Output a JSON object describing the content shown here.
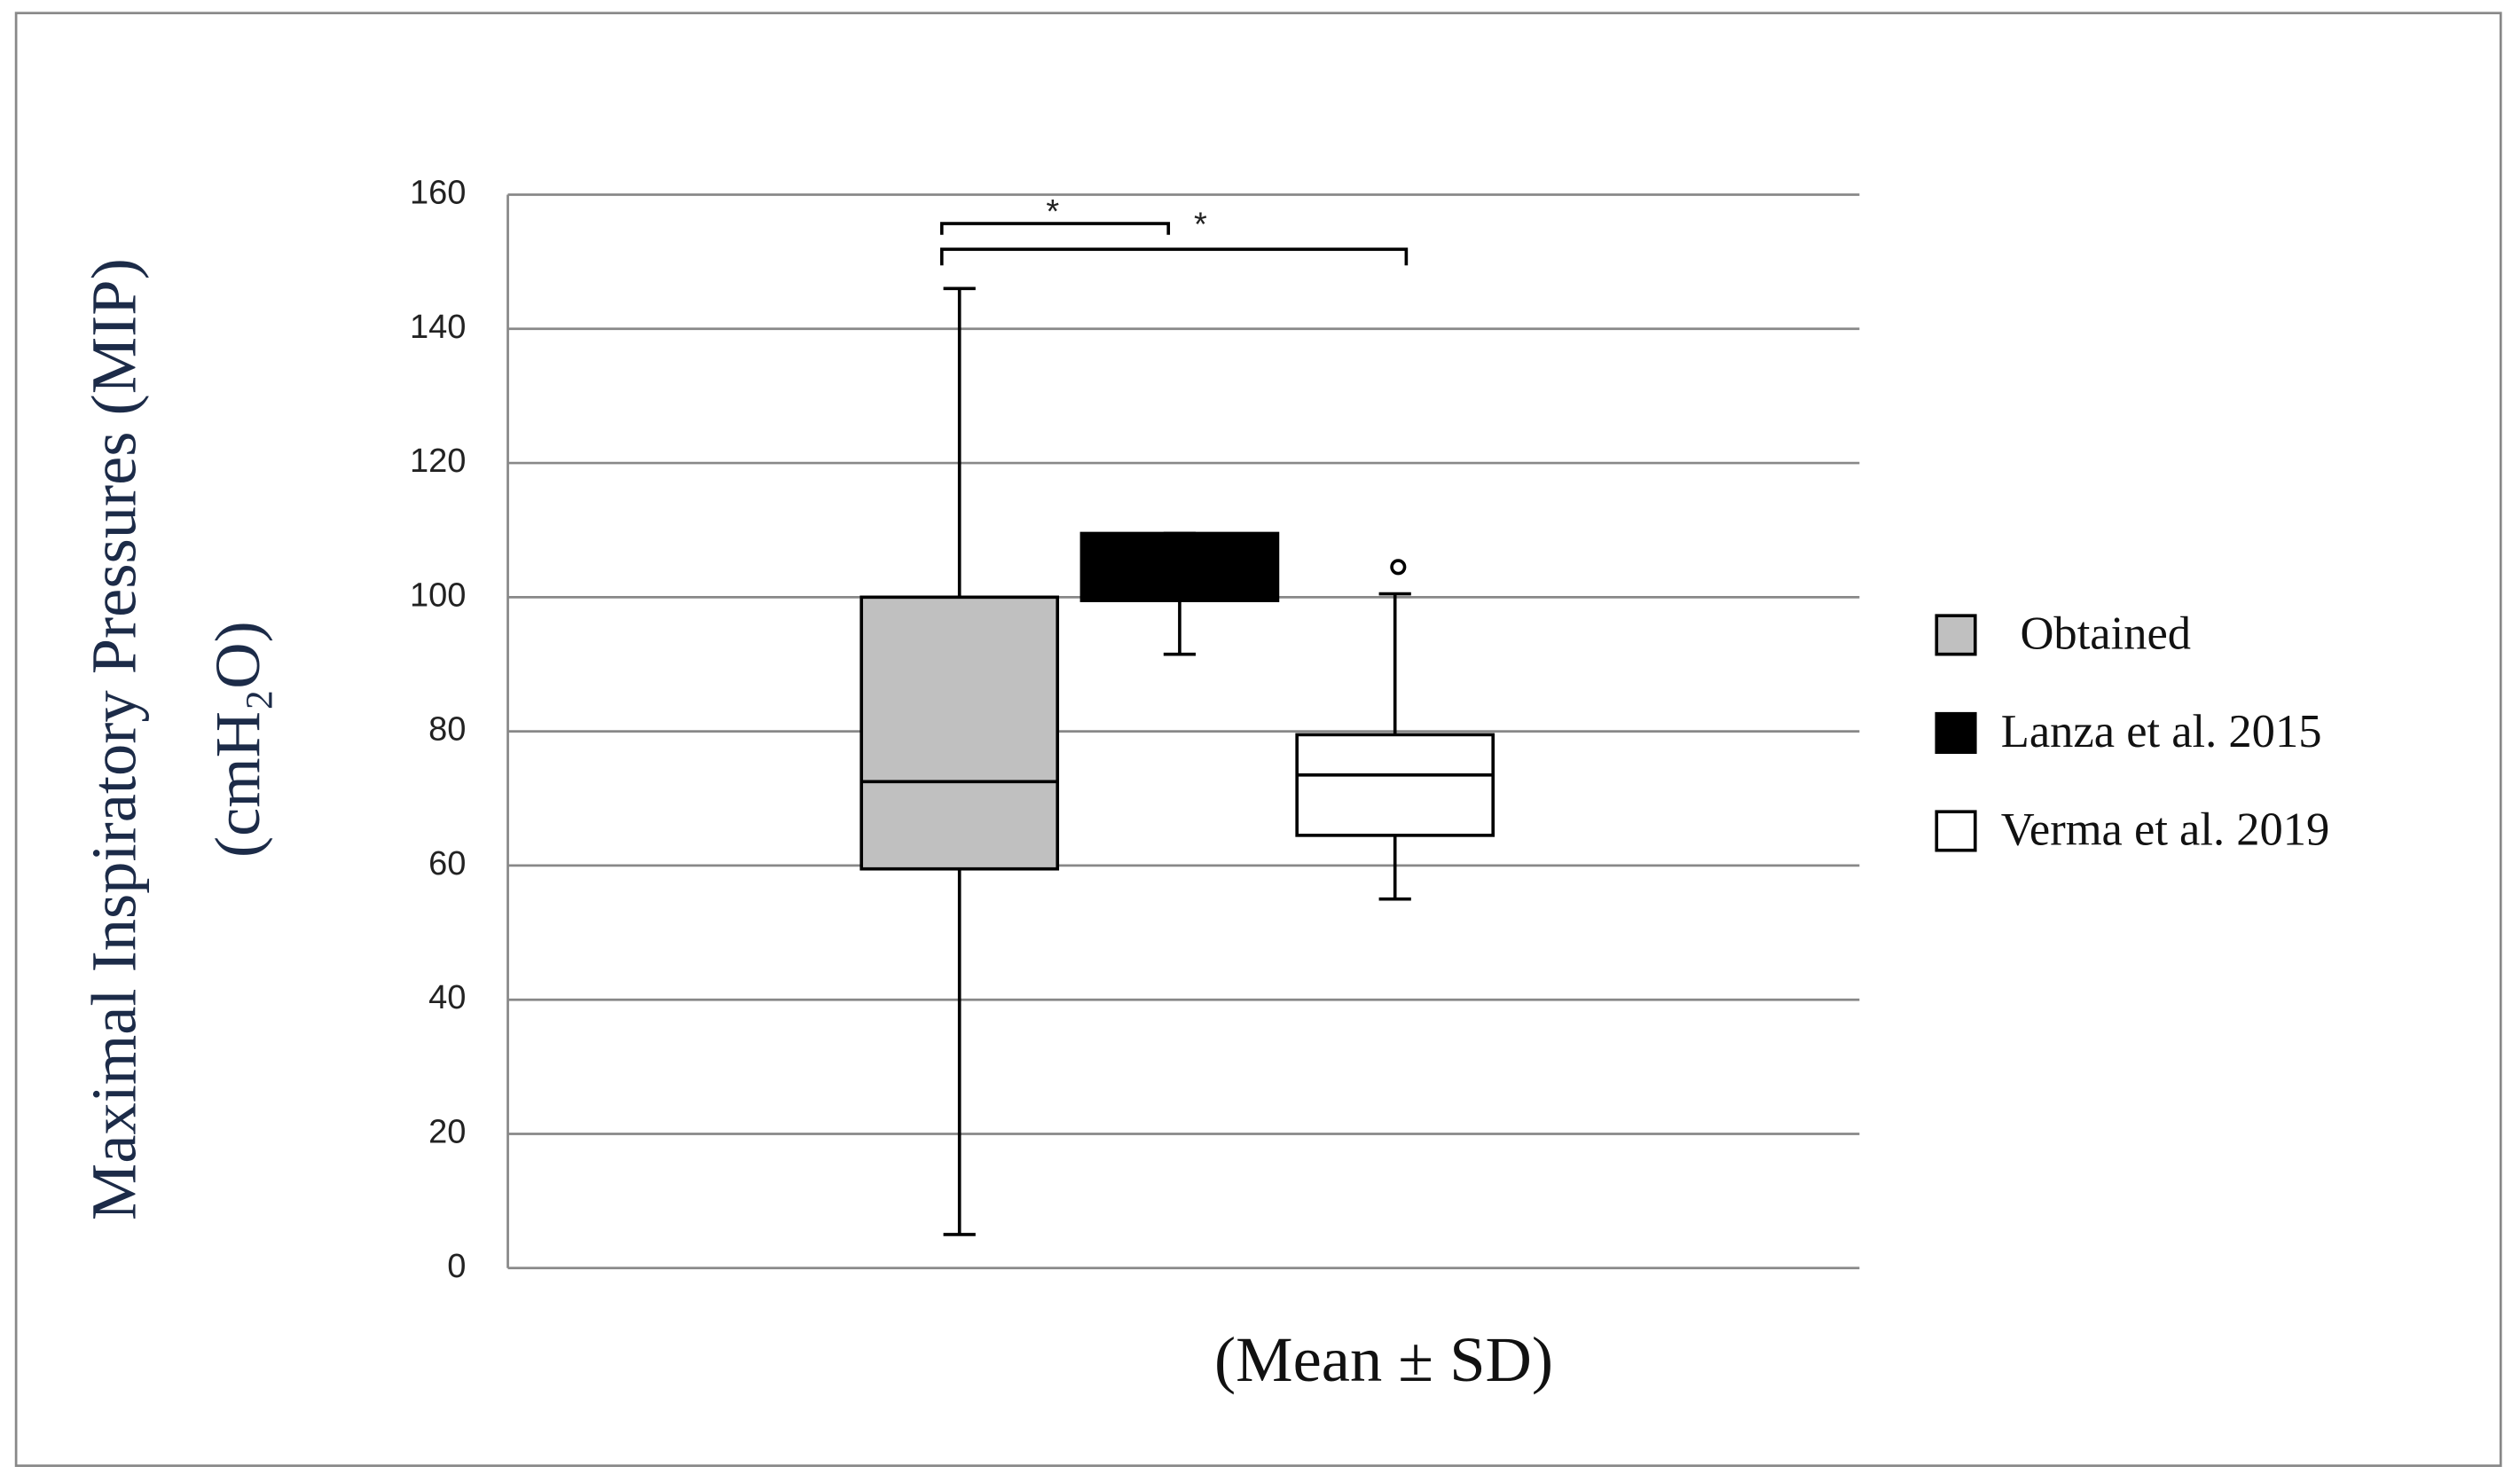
{
  "chart_data": {
    "type": "box",
    "y_label_lines": [
      "Maximal Inspiratory Pressures (MIP)",
      "(cmH₂O)"
    ],
    "x_label": "(Mean ± SD)",
    "ylim": [
      0,
      160
    ],
    "yticks": [
      0,
      20,
      40,
      60,
      80,
      100,
      120,
      140,
      160
    ],
    "grid": true,
    "legend": "right",
    "annotations": [
      "*",
      "*"
    ],
    "series": [
      {
        "name": "Obtained",
        "color": "#c0c0c0",
        "min": 5,
        "q1": 59.5,
        "median": 72.5,
        "q3": 100,
        "max": 146,
        "outliers": []
      },
      {
        "name": "Lanza et al. 2015",
        "color": "#000000",
        "min": 91.5,
        "q1": 99.5,
        "median": null,
        "q3": 109.5,
        "max": 109.5,
        "outliers": []
      },
      {
        "name": "Verma et al. 2019",
        "color": "#ffffff",
        "min": 55,
        "q1": 64.5,
        "median": 73.5,
        "q3": 79.5,
        "max": 100.5,
        "outliers": [
          104.5
        ]
      }
    ]
  }
}
